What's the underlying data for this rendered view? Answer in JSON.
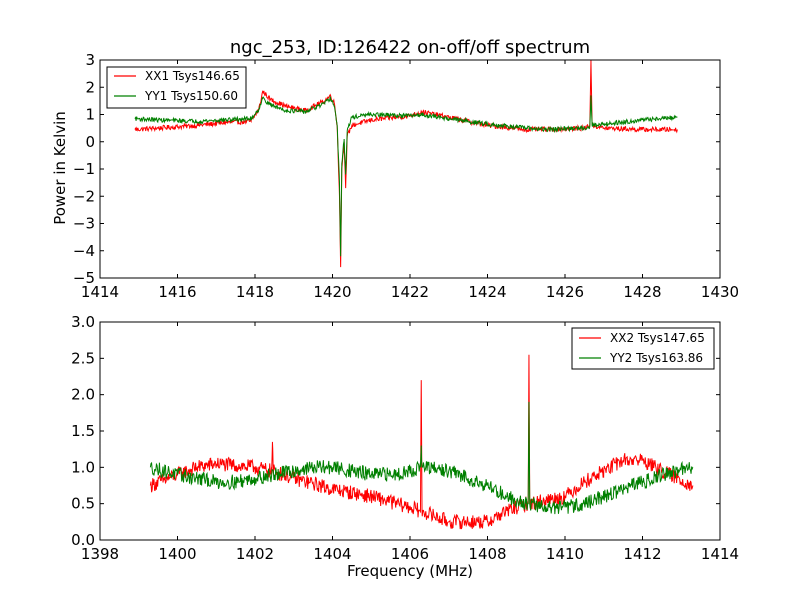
{
  "chart_data": [
    {
      "type": "line",
      "title": "ngc_253, ID:126422 on-off/off spectrum",
      "xlabel": "",
      "ylabel": "Power in Kelvin",
      "xlim": [
        1414,
        1430
      ],
      "ylim": [
        -5,
        3
      ],
      "x_ticks": [
        1414,
        1416,
        1418,
        1420,
        1422,
        1424,
        1426,
        1428,
        1430
      ],
      "y_ticks": [
        3,
        2,
        1,
        0,
        -1,
        -2,
        -3,
        -4,
        -5
      ],
      "x_tick_labels": [
        "1414",
        "1416",
        "1418",
        "1420",
        "1422",
        "1424",
        "1426",
        "1428",
        "1430"
      ],
      "y_tick_labels": [
        "3",
        "2",
        "1",
        "0",
        "−1",
        "−2",
        "−3",
        "−4",
        "−5"
      ],
      "grid": false,
      "legend": "upper-left",
      "series": [
        {
          "name": "XX1 Tsys146.65",
          "color": "#ff0000",
          "noise": 0.09,
          "x": [
            1414.9,
            1415.5,
            1416.5,
            1417.2,
            1417.9,
            1418.1,
            1418.2,
            1418.4,
            1418.8,
            1419.3,
            1419.8,
            1419.95,
            1420.05,
            1420.12,
            1420.18,
            1420.21,
            1420.24,
            1420.3,
            1420.34,
            1420.38,
            1420.5,
            1421.0,
            1422.0,
            1422.3,
            1423.0,
            1424.0,
            1425.0,
            1425.5,
            1426.5,
            1426.64,
            1426.67,
            1426.7,
            1427.0,
            1428.0,
            1428.9
          ],
          "y": [
            0.45,
            0.5,
            0.6,
            0.7,
            0.75,
            1.2,
            1.85,
            1.55,
            1.3,
            1.15,
            1.5,
            1.7,
            1.4,
            0.6,
            -2.0,
            -4.6,
            -1.0,
            0.0,
            -1.7,
            0.2,
            0.6,
            0.8,
            0.95,
            1.1,
            0.9,
            0.6,
            0.45,
            0.45,
            0.5,
            0.6,
            3.0,
            0.6,
            0.5,
            0.45,
            0.45
          ]
        },
        {
          "name": "YY1 Tsys150.60",
          "color": "#008000",
          "noise": 0.08,
          "x": [
            1414.9,
            1415.5,
            1416.5,
            1417.2,
            1417.9,
            1418.1,
            1418.2,
            1418.4,
            1418.8,
            1419.3,
            1419.8,
            1419.95,
            1420.05,
            1420.12,
            1420.18,
            1420.21,
            1420.24,
            1420.3,
            1420.34,
            1420.38,
            1420.5,
            1421.0,
            1422.0,
            1422.3,
            1423.0,
            1424.0,
            1425.0,
            1425.5,
            1426.5,
            1426.64,
            1426.67,
            1426.7,
            1427.0,
            1428.0,
            1428.9
          ],
          "y": [
            0.85,
            0.8,
            0.75,
            0.8,
            0.85,
            1.2,
            1.6,
            1.35,
            1.15,
            1.1,
            1.4,
            1.6,
            1.3,
            0.6,
            -1.5,
            -4.2,
            -0.8,
            0.1,
            -1.2,
            0.4,
            0.9,
            1.0,
            0.95,
            1.0,
            0.85,
            0.65,
            0.5,
            0.45,
            0.5,
            0.55,
            1.7,
            0.6,
            0.65,
            0.8,
            0.9
          ]
        }
      ]
    },
    {
      "type": "line",
      "title": "",
      "xlabel": "Frequency (MHz)",
      "ylabel": "",
      "xlim": [
        1398,
        1414
      ],
      "ylim": [
        0.0,
        3.0
      ],
      "x_ticks": [
        1398,
        1400,
        1402,
        1404,
        1406,
        1408,
        1410,
        1412,
        1414
      ],
      "y_ticks": [
        3.0,
        2.5,
        2.0,
        1.5,
        1.0,
        0.5,
        0.0
      ],
      "x_tick_labels": [
        "1398",
        "1400",
        "1402",
        "1404",
        "1406",
        "1408",
        "1410",
        "1412",
        "1414"
      ],
      "y_tick_labels": [
        "3.0",
        "2.5",
        "2.0",
        "1.5",
        "1.0",
        "0.5",
        "0.0"
      ],
      "grid": false,
      "legend": "upper-right",
      "series": [
        {
          "name": "XX2 Tsys147.65",
          "color": "#ff0000",
          "noise": 0.1,
          "x": [
            1399.3,
            1400.0,
            1400.5,
            1401.0,
            1402.0,
            1402.43,
            1402.45,
            1402.47,
            1403.0,
            1404.0,
            1405.0,
            1406.0,
            1406.27,
            1406.29,
            1406.31,
            1407.0,
            1407.5,
            1408.0,
            1408.5,
            1409.0,
            1409.05,
            1409.07,
            1409.09,
            1409.5,
            1410.0,
            1410.5,
            1411.0,
            1411.5,
            1412.0,
            1412.5,
            1413.3
          ],
          "y": [
            0.75,
            0.9,
            1.0,
            1.05,
            1.0,
            0.95,
            1.35,
            0.95,
            0.85,
            0.7,
            0.6,
            0.45,
            0.4,
            2.2,
            0.4,
            0.25,
            0.25,
            0.25,
            0.4,
            0.5,
            0.5,
            2.55,
            0.5,
            0.55,
            0.6,
            0.8,
            0.95,
            1.1,
            1.1,
            0.95,
            0.75
          ]
        },
        {
          "name": "YY2 Tsys163.86",
          "color": "#008000",
          "noise": 0.1,
          "x": [
            1399.3,
            1400.0,
            1400.5,
            1401.0,
            1401.5,
            1402.0,
            1402.5,
            1403.0,
            1403.5,
            1404.0,
            1404.5,
            1405.0,
            1405.5,
            1406.0,
            1406.27,
            1406.29,
            1406.31,
            1407.0,
            1407.5,
            1408.0,
            1408.5,
            1409.0,
            1409.05,
            1409.07,
            1409.09,
            1409.5,
            1410.0,
            1410.5,
            1411.0,
            1412.0,
            1412.5,
            1413.3
          ],
          "y": [
            1.0,
            0.9,
            0.85,
            0.8,
            0.8,
            0.85,
            0.9,
            0.95,
            1.0,
            1.0,
            0.95,
            0.9,
            0.9,
            0.95,
            1.0,
            1.3,
            1.0,
            0.95,
            0.85,
            0.75,
            0.6,
            0.5,
            0.5,
            1.9,
            0.5,
            0.45,
            0.45,
            0.5,
            0.6,
            0.8,
            0.9,
            1.0
          ]
        }
      ]
    }
  ]
}
